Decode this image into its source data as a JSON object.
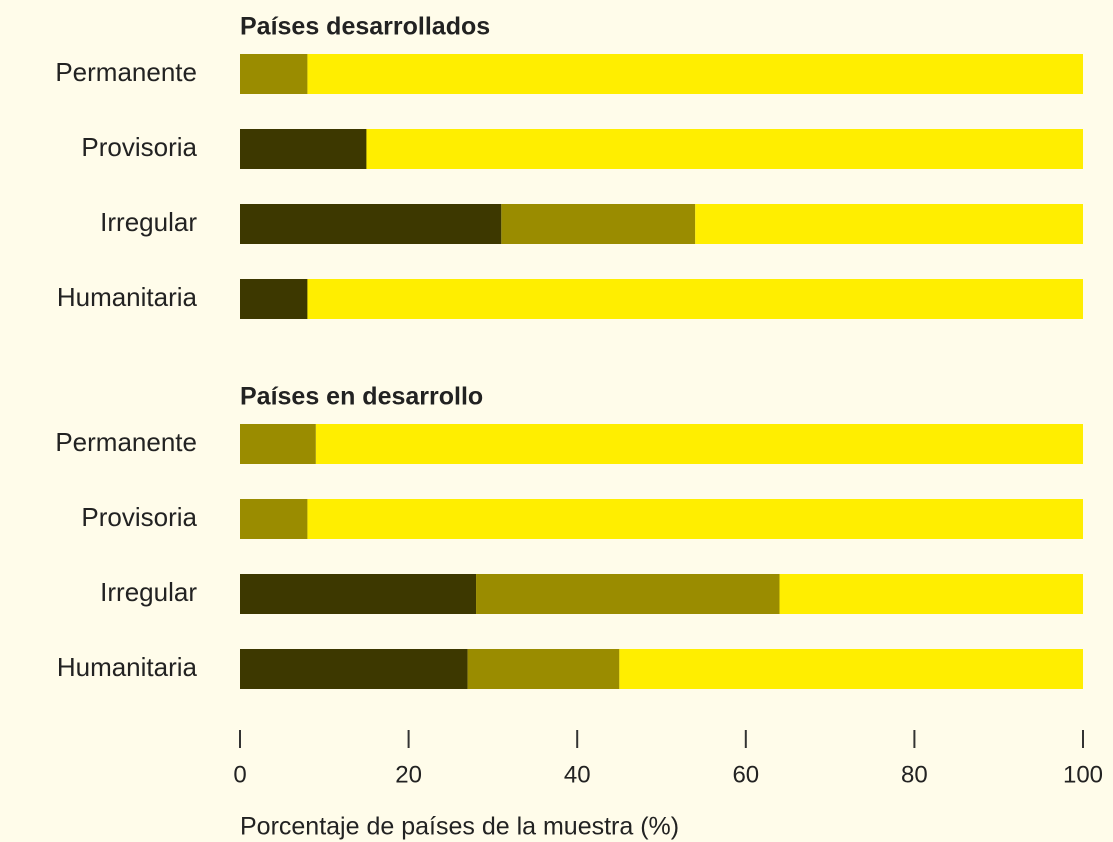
{
  "chart_data": [
    {
      "type": "bar",
      "title": "Países desarrollados",
      "categories": [
        "Permanente",
        "Provisoria",
        "Irregular",
        "Humanitaria"
      ],
      "series": [
        {
          "color": "#3d3800",
          "values": [
            0,
            15,
            31,
            8
          ]
        },
        {
          "color": "#9a8c00",
          "values": [
            8,
            0,
            23,
            0
          ]
        },
        {
          "color": "#ffee00",
          "values": [
            92,
            85,
            46,
            92
          ]
        }
      ],
      "xlim": [
        0,
        100
      ]
    },
    {
      "type": "bar",
      "title": "Países en desarrollo",
      "categories": [
        "Permanente",
        "Provisoria",
        "Irregular",
        "Humanitaria"
      ],
      "series": [
        {
          "color": "#3d3800",
          "values": [
            0,
            0,
            28,
            27
          ]
        },
        {
          "color": "#9a8c00",
          "values": [
            9,
            8,
            36,
            18
          ]
        },
        {
          "color": "#ffee00",
          "values": [
            91,
            92,
            36,
            55
          ]
        }
      ],
      "xlim": [
        0,
        100
      ],
      "xticks": [
        0,
        20,
        40,
        60,
        80,
        100
      ],
      "x_label": "Porcentaje de países de la muestra (%)"
    }
  ]
}
